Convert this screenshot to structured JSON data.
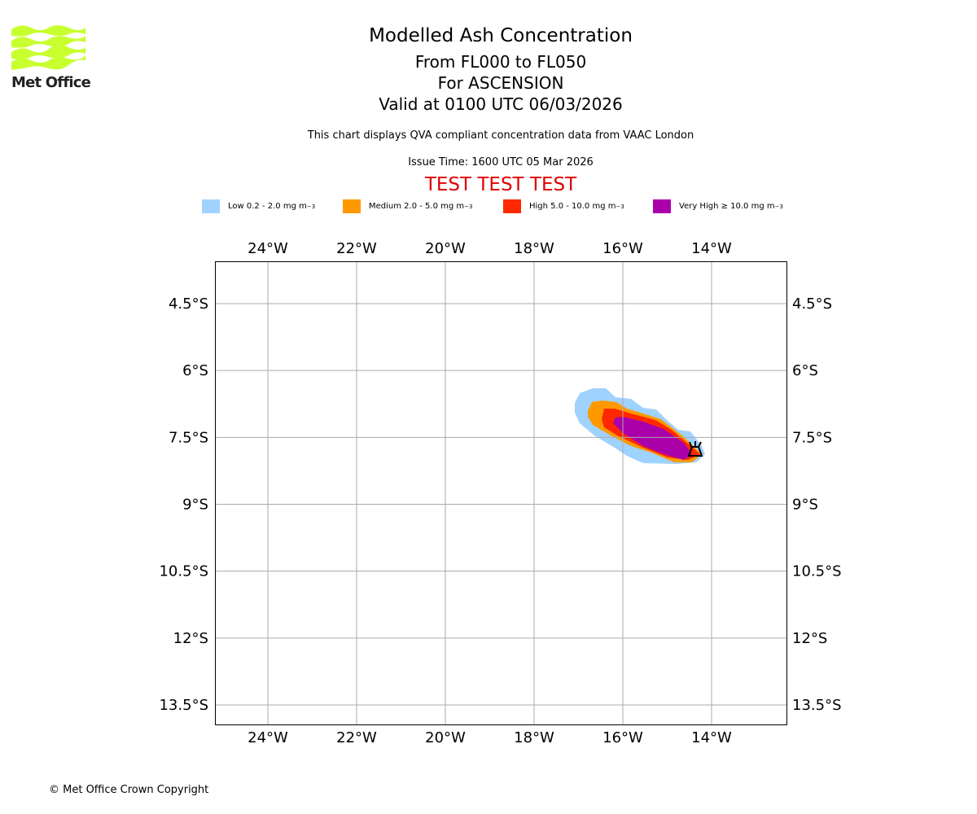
{
  "logo": {
    "text": "Met Office"
  },
  "header": {
    "title": "Modelled Ash Concentration",
    "levels": "From FL000 to FL050",
    "region": "For ASCENSION",
    "valid": "Valid at 0100 UTC 06/03/2026",
    "description": "This chart displays QVA compliant concentration data from VAAC London",
    "issue_time": "Issue Time: 1600 UTC 05 Mar 2026",
    "test_banner": "TEST TEST TEST"
  },
  "legend": [
    {
      "label": "Low 0.2 - 2.0 mg m",
      "sup": "−3",
      "color": "#a0d2ff"
    },
    {
      "label": "Medium 2.0 - 5.0 mg m",
      "sup": "−3",
      "color": "#ff9900"
    },
    {
      "label": "High 5.0 - 10.0 mg m",
      "sup": "−3",
      "color": "#ff2800"
    },
    {
      "label": "Very High  ≥  10.0 mg m",
      "sup": "−3",
      "color": "#aa00aa"
    }
  ],
  "map": {
    "lon_ticks": [
      -24,
      -22,
      -20,
      -18,
      -16,
      -14
    ],
    "lon_labels": [
      "24°W",
      "22°W",
      "20°W",
      "18°W",
      "16°W",
      "14°W"
    ],
    "lat_ticks": [
      -4.5,
      -6,
      -7.5,
      -9,
      -10.5,
      -12,
      -13.5
    ],
    "lat_labels": [
      "4.5°S",
      "6°S",
      "7.5°S",
      "9°S",
      "10.5°S",
      "12°S",
      "13.5°S"
    ],
    "volcano_icon": "volcano-icon",
    "volcano_location": {
      "lon": -14.35,
      "lat": -7.8
    }
  },
  "footer": {
    "copyright": "© Met Office Crown Copyright"
  }
}
